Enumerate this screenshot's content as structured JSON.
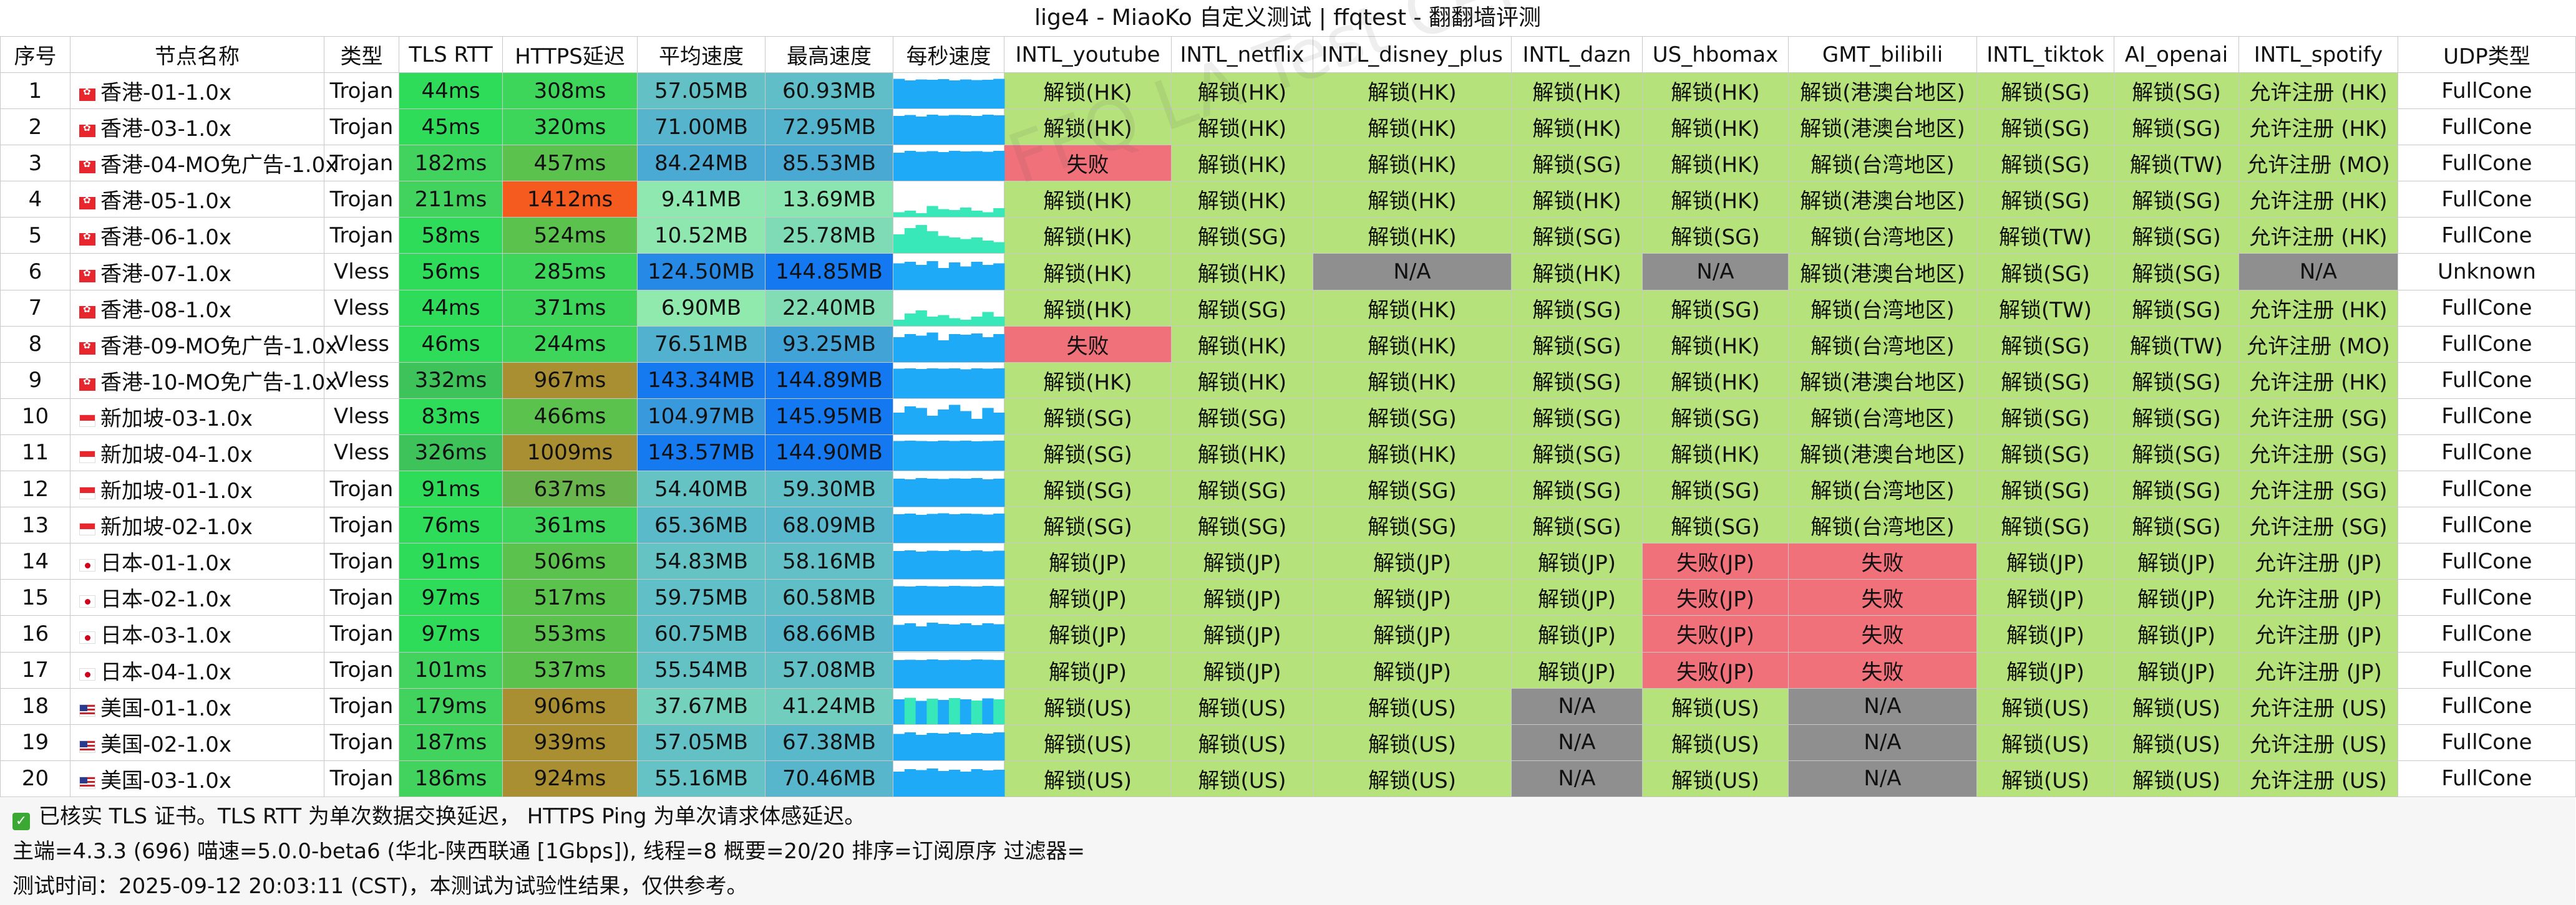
{
  "title": "lige4 - MiaoKo 自定义测试 | ffqtest - 翻翻墙评测",
  "watermark": "FFQ LA Test Center",
  "colors": {
    "unlock": "#b5e27a",
    "fail": "#f1717a",
    "na": "#8f8f8f",
    "spark": "#1eaaf7",
    "spark_alt": "#38e8b8"
  },
  "columns": [
    "序号",
    "节点名称",
    "类型",
    "TLS RTT",
    "HTTPS延迟",
    "平均速度",
    "最高速度",
    "每秒速度",
    "INTL_youtube",
    "INTL_netflix",
    "INTL_disney_plus",
    "INTL_dazn",
    "US_hbomax",
    "GMT_bilibili",
    "INTL_tiktok",
    "AI_openai",
    "INTL_spotify",
    "UDP类型"
  ],
  "rows": [
    {
      "no": "1",
      "flag": "hk",
      "name": "香港-01-1.0x",
      "type": "Trojan",
      "tls": "44ms",
      "https": "308ms",
      "avg": "57.05MB",
      "max": "60.93MB",
      "spark": [
        0.95,
        0.9,
        0.93,
        0.92,
        0.94,
        0.9,
        0.93,
        0.91,
        0.92,
        0.95
      ],
      "youtube": "解锁(HK)",
      "netflix": "解锁(HK)",
      "disney": "解锁(HK)",
      "dazn": "解锁(HK)",
      "hbomax": "解锁(HK)",
      "bilibili": "解锁(港澳台地区)",
      "tiktok": "解锁(SG)",
      "openai": "解锁(SG)",
      "spotify": "允许注册 (HK)",
      "udp": "FullCone"
    },
    {
      "no": "2",
      "flag": "hk",
      "name": "香港-03-1.0x",
      "type": "Trojan",
      "tls": "45ms",
      "https": "320ms",
      "avg": "71.00MB",
      "max": "72.95MB",
      "spark": [
        0.92,
        0.95,
        0.9,
        0.96,
        0.93,
        0.95,
        0.94,
        0.92,
        0.96,
        0.94
      ],
      "youtube": "解锁(HK)",
      "netflix": "解锁(HK)",
      "disney": "解锁(HK)",
      "dazn": "解锁(HK)",
      "hbomax": "解锁(HK)",
      "bilibili": "解锁(港澳台地区)",
      "tiktok": "解锁(SG)",
      "openai": "解锁(SG)",
      "spotify": "允许注册 (HK)",
      "udp": "FullCone"
    },
    {
      "no": "3",
      "flag": "hk",
      "name": "香港-04-MO免广告-1.0x",
      "type": "Trojan",
      "tls": "182ms",
      "https": "457ms",
      "avg": "84.24MB",
      "max": "85.53MB",
      "spark": [
        0.9,
        0.96,
        0.93,
        0.95,
        0.92,
        0.96,
        0.94,
        0.95,
        0.93,
        0.96
      ],
      "youtube": "失败",
      "netflix": "解锁(HK)",
      "disney": "解锁(HK)",
      "dazn": "解锁(SG)",
      "hbomax": "解锁(HK)",
      "bilibili": "解锁(台湾地区)",
      "tiktok": "解锁(SG)",
      "openai": "解锁(TW)",
      "spotify": "允许注册 (MO)",
      "udp": "FullCone"
    },
    {
      "no": "4",
      "flag": "hk",
      "name": "香港-05-1.0x",
      "type": "Trojan",
      "tls": "211ms",
      "https": "1412ms",
      "avg": "9.41MB",
      "max": "13.69MB",
      "spark": [
        0.15,
        0.2,
        0.12,
        0.35,
        0.25,
        0.22,
        0.3,
        0.2,
        0.15,
        0.28
      ],
      "youtube": "解锁(HK)",
      "netflix": "解锁(HK)",
      "disney": "解锁(HK)",
      "dazn": "解锁(HK)",
      "hbomax": "解锁(HK)",
      "bilibili": "解锁(港澳台地区)",
      "tiktok": "解锁(SG)",
      "openai": "解锁(SG)",
      "spotify": "允许注册 (HK)",
      "udp": "FullCone"
    },
    {
      "no": "5",
      "flag": "hk",
      "name": "香港-06-1.0x",
      "type": "Trojan",
      "tls": "58ms",
      "https": "524ms",
      "avg": "10.52MB",
      "max": "25.78MB",
      "spark": [
        0.6,
        0.8,
        0.9,
        0.7,
        0.55,
        0.5,
        0.45,
        0.5,
        0.4,
        0.35
      ],
      "youtube": "解锁(HK)",
      "netflix": "解锁(SG)",
      "disney": "解锁(HK)",
      "dazn": "解锁(SG)",
      "hbomax": "解锁(SG)",
      "bilibili": "解锁(台湾地区)",
      "tiktok": "解锁(TW)",
      "openai": "解锁(SG)",
      "spotify": "允许注册 (HK)",
      "udp": "FullCone"
    },
    {
      "no": "6",
      "flag": "hk",
      "name": "香港-07-1.0x",
      "type": "Vless",
      "tls": "56ms",
      "https": "285ms",
      "avg": "124.50MB",
      "max": "144.85MB",
      "spark": [
        0.85,
        0.9,
        0.8,
        0.92,
        0.7,
        0.88,
        0.75,
        0.9,
        0.8,
        0.85
      ],
      "youtube": "解锁(HK)",
      "netflix": "解锁(HK)",
      "disney": "N/A",
      "dazn": "解锁(HK)",
      "hbomax": "N/A",
      "bilibili": "解锁(港澳台地区)",
      "tiktok": "解锁(SG)",
      "openai": "解锁(SG)",
      "spotify": "N/A",
      "udp": "Unknown"
    },
    {
      "no": "7",
      "flag": "hk",
      "name": "香港-08-1.0x",
      "type": "Vless",
      "tls": "44ms",
      "https": "371ms",
      "avg": "6.90MB",
      "max": "22.40MB",
      "spark": [
        0.2,
        0.4,
        0.5,
        0.3,
        0.35,
        0.25,
        0.2,
        0.3,
        0.45,
        0.3
      ],
      "youtube": "解锁(HK)",
      "netflix": "解锁(SG)",
      "disney": "解锁(HK)",
      "dazn": "解锁(SG)",
      "hbomax": "解锁(SG)",
      "bilibili": "解锁(台湾地区)",
      "tiktok": "解锁(TW)",
      "openai": "解锁(SG)",
      "spotify": "允许注册 (HK)",
      "udp": "FullCone"
    },
    {
      "no": "8",
      "flag": "hk",
      "name": "香港-09-MO免广告-1.0x",
      "type": "Vless",
      "tls": "46ms",
      "https": "244ms",
      "avg": "76.51MB",
      "max": "93.25MB",
      "spark": [
        0.8,
        0.9,
        0.85,
        0.95,
        0.7,
        0.9,
        0.88,
        0.92,
        0.8,
        0.9
      ],
      "youtube": "失败",
      "netflix": "解锁(HK)",
      "disney": "解锁(HK)",
      "dazn": "解锁(SG)",
      "hbomax": "解锁(HK)",
      "bilibili": "解锁(台湾地区)",
      "tiktok": "解锁(SG)",
      "openai": "解锁(TW)",
      "spotify": "允许注册 (MO)",
      "udp": "FullCone"
    },
    {
      "no": "9",
      "flag": "hk",
      "name": "香港-10-MO免广告-1.0x",
      "type": "Vless",
      "tls": "332ms",
      "https": "967ms",
      "avg": "143.34MB",
      "max": "144.89MB",
      "spark": [
        0.95,
        0.96,
        0.94,
        0.96,
        0.95,
        0.96,
        0.93,
        0.96,
        0.95,
        0.96
      ],
      "youtube": "解锁(HK)",
      "netflix": "解锁(HK)",
      "disney": "解锁(HK)",
      "dazn": "解锁(SG)",
      "hbomax": "解锁(HK)",
      "bilibili": "解锁(港澳台地区)",
      "tiktok": "解锁(SG)",
      "openai": "解锁(SG)",
      "spotify": "允许注册 (HK)",
      "udp": "FullCone"
    },
    {
      "no": "10",
      "flag": "sg",
      "name": "新加坡-03-1.0x",
      "type": "Vless",
      "tls": "83ms",
      "https": "466ms",
      "avg": "104.97MB",
      "max": "145.95MB",
      "spark": [
        0.7,
        0.9,
        0.85,
        0.6,
        0.8,
        0.95,
        0.75,
        0.5,
        0.85,
        0.7
      ],
      "youtube": "解锁(SG)",
      "netflix": "解锁(SG)",
      "disney": "解锁(SG)",
      "dazn": "解锁(SG)",
      "hbomax": "解锁(SG)",
      "bilibili": "解锁(台湾地区)",
      "tiktok": "解锁(SG)",
      "openai": "解锁(SG)",
      "spotify": "允许注册 (SG)",
      "udp": "FullCone"
    },
    {
      "no": "11",
      "flag": "sg",
      "name": "新加坡-04-1.0x",
      "type": "Vless",
      "tls": "326ms",
      "https": "1009ms",
      "avg": "143.57MB",
      "max": "144.90MB",
      "spark": [
        0.95,
        0.96,
        0.95,
        0.94,
        0.96,
        0.95,
        0.96,
        0.94,
        0.95,
        0.96
      ],
      "youtube": "解锁(SG)",
      "netflix": "解锁(HK)",
      "disney": "解锁(HK)",
      "dazn": "解锁(SG)",
      "hbomax": "解锁(HK)",
      "bilibili": "解锁(港澳台地区)",
      "tiktok": "解锁(SG)",
      "openai": "解锁(SG)",
      "spotify": "允许注册 (SG)",
      "udp": "FullCone"
    },
    {
      "no": "12",
      "flag": "sg",
      "name": "新加坡-01-1.0x",
      "type": "Trojan",
      "tls": "91ms",
      "https": "637ms",
      "avg": "54.40MB",
      "max": "59.30MB",
      "spark": [
        0.9,
        0.88,
        0.92,
        0.9,
        0.89,
        0.91,
        0.9,
        0.92,
        0.88,
        0.9
      ],
      "youtube": "解锁(SG)",
      "netflix": "解锁(SG)",
      "disney": "解锁(SG)",
      "dazn": "解锁(SG)",
      "hbomax": "解锁(SG)",
      "bilibili": "解锁(台湾地区)",
      "tiktok": "解锁(SG)",
      "openai": "解锁(SG)",
      "spotify": "允许注册 (SG)",
      "udp": "FullCone"
    },
    {
      "no": "13",
      "flag": "sg",
      "name": "新加坡-02-1.0x",
      "type": "Trojan",
      "tls": "76ms",
      "https": "361ms",
      "avg": "65.36MB",
      "max": "68.09MB",
      "spark": [
        0.92,
        0.94,
        0.9,
        0.93,
        0.95,
        0.92,
        0.94,
        0.93,
        0.91,
        0.94
      ],
      "youtube": "解锁(SG)",
      "netflix": "解锁(SG)",
      "disney": "解锁(SG)",
      "dazn": "解锁(SG)",
      "hbomax": "解锁(SG)",
      "bilibili": "解锁(台湾地区)",
      "tiktok": "解锁(SG)",
      "openai": "解锁(SG)",
      "spotify": "允许注册 (SG)",
      "udp": "FullCone"
    },
    {
      "no": "14",
      "flag": "jp",
      "name": "日本-01-1.0x",
      "type": "Trojan",
      "tls": "91ms",
      "https": "506ms",
      "avg": "54.83MB",
      "max": "58.16MB",
      "spark": [
        0.9,
        0.92,
        0.88,
        0.91,
        0.9,
        0.93,
        0.9,
        0.92,
        0.89,
        0.91
      ],
      "youtube": "解锁(JP)",
      "netflix": "解锁(JP)",
      "disney": "解锁(JP)",
      "dazn": "解锁(JP)",
      "hbomax": "失败(JP)",
      "bilibili": "失败",
      "tiktok": "解锁(JP)",
      "openai": "解锁(JP)",
      "spotify": "允许注册 (JP)",
      "udp": "FullCone"
    },
    {
      "no": "15",
      "flag": "jp",
      "name": "日本-02-1.0x",
      "type": "Trojan",
      "tls": "97ms",
      "https": "517ms",
      "avg": "59.75MB",
      "max": "60.58MB",
      "spark": [
        0.93,
        0.92,
        0.94,
        0.93,
        0.92,
        0.94,
        0.93,
        0.92,
        0.94,
        0.93
      ],
      "youtube": "解锁(JP)",
      "netflix": "解锁(JP)",
      "disney": "解锁(JP)",
      "dazn": "解锁(JP)",
      "hbomax": "失败(JP)",
      "bilibili": "失败",
      "tiktok": "解锁(JP)",
      "openai": "解锁(JP)",
      "spotify": "允许注册 (JP)",
      "udp": "FullCone"
    },
    {
      "no": "16",
      "flag": "jp",
      "name": "日本-03-1.0x",
      "type": "Trojan",
      "tls": "97ms",
      "https": "553ms",
      "avg": "60.75MB",
      "max": "68.66MB",
      "spark": [
        0.85,
        0.9,
        0.8,
        0.92,
        0.88,
        0.86,
        0.9,
        0.84,
        0.9,
        0.87
      ],
      "youtube": "解锁(JP)",
      "netflix": "解锁(JP)",
      "disney": "解锁(JP)",
      "dazn": "解锁(JP)",
      "hbomax": "失败(JP)",
      "bilibili": "失败",
      "tiktok": "解锁(JP)",
      "openai": "解锁(JP)",
      "spotify": "允许注册 (JP)",
      "udp": "FullCone"
    },
    {
      "no": "17",
      "flag": "jp",
      "name": "日本-04-1.0x",
      "type": "Trojan",
      "tls": "101ms",
      "https": "537ms",
      "avg": "55.54MB",
      "max": "57.08MB",
      "spark": [
        0.9,
        0.91,
        0.9,
        0.92,
        0.9,
        0.91,
        0.9,
        0.92,
        0.91,
        0.9
      ],
      "youtube": "解锁(JP)",
      "netflix": "解锁(JP)",
      "disney": "解锁(JP)",
      "dazn": "解锁(JP)",
      "hbomax": "失败(JP)",
      "bilibili": "失败",
      "tiktok": "解锁(JP)",
      "openai": "解锁(JP)",
      "spotify": "允许注册 (JP)",
      "udp": "FullCone"
    },
    {
      "no": "18",
      "flag": "us",
      "name": "美国-01-1.0x",
      "type": "Trojan",
      "tls": "179ms",
      "https": "906ms",
      "avg": "37.67MB",
      "max": "41.24MB",
      "spark": [
        0.8,
        0.85,
        0.75,
        0.82,
        0.78,
        0.84,
        0.8,
        0.76,
        0.83,
        0.8
      ],
      "youtube": "解锁(US)",
      "netflix": "解锁(US)",
      "disney": "解锁(US)",
      "dazn": "N/A",
      "hbomax": "解锁(US)",
      "bilibili": "N/A",
      "tiktok": "解锁(US)",
      "openai": "解锁(US)",
      "spotify": "允许注册 (US)",
      "udp": "FullCone"
    },
    {
      "no": "19",
      "flag": "us",
      "name": "美国-02-1.0x",
      "type": "Trojan",
      "tls": "187ms",
      "https": "939ms",
      "avg": "57.05MB",
      "max": "67.38MB",
      "spark": [
        0.85,
        0.9,
        0.82,
        0.88,
        0.86,
        0.9,
        0.84,
        0.88,
        0.86,
        0.9
      ],
      "youtube": "解锁(US)",
      "netflix": "解锁(US)",
      "disney": "解锁(US)",
      "dazn": "N/A",
      "hbomax": "解锁(US)",
      "bilibili": "N/A",
      "tiktok": "解锁(US)",
      "openai": "解锁(US)",
      "spotify": "允许注册 (US)",
      "udp": "FullCone"
    },
    {
      "no": "20",
      "flag": "us",
      "name": "美国-03-1.0x",
      "type": "Trojan",
      "tls": "186ms",
      "https": "924ms",
      "avg": "55.16MB",
      "max": "70.46MB",
      "spark": [
        0.8,
        0.88,
        0.85,
        0.9,
        0.82,
        0.86,
        0.8,
        0.88,
        0.84,
        0.86
      ],
      "youtube": "解锁(US)",
      "netflix": "解锁(US)",
      "disney": "解锁(US)",
      "dazn": "N/A",
      "hbomax": "解锁(US)",
      "bilibili": "N/A",
      "tiktok": "解锁(US)",
      "openai": "解锁(US)",
      "spotify": "允许注册 (US)",
      "udp": "FullCone"
    }
  ],
  "footer": {
    "line1": "已核实 TLS 证书。TLS RTT 为单次数据交换延迟， HTTPS Ping 为单次请求体感延迟。",
    "line2": "主端=4.3.3 (696) 喵速=5.0.0-beta6 (华北-陕西联通 [1Gbps]), 线程=8 概要=20/20 排序=订阅原序 过滤器=",
    "line3": "测试时间：2025-09-12 20:03:11 (CST)，本测试为试验性结果，仅供参考。"
  }
}
